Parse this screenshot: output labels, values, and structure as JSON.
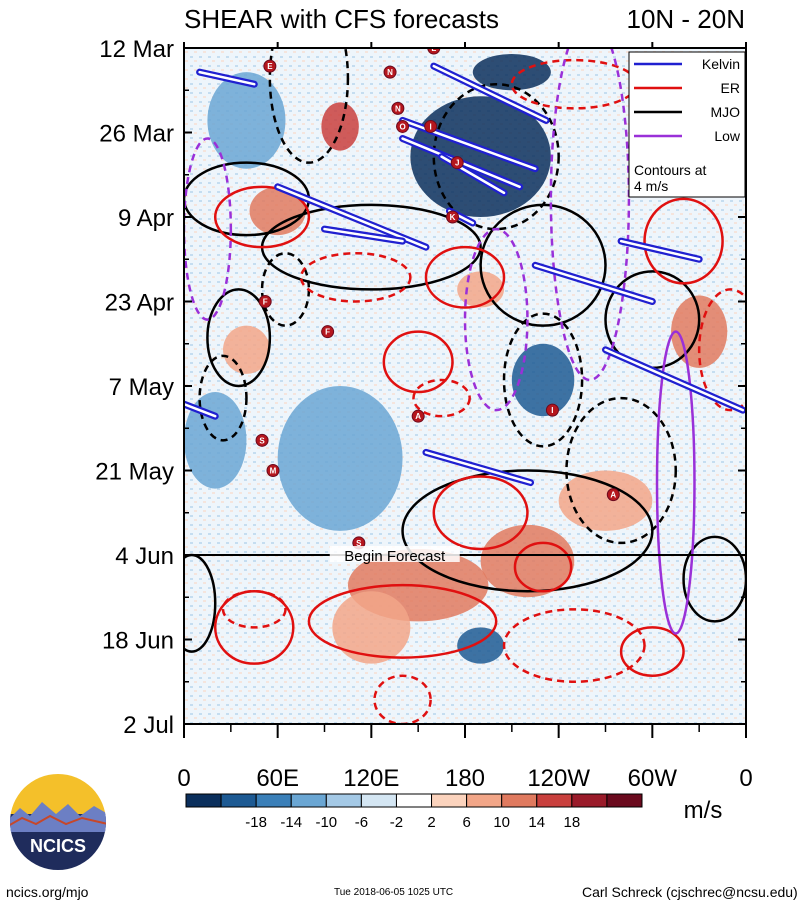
{
  "chart_data": {
    "type": "heatmap",
    "title_left": "SHEAR with CFS forecasts",
    "title_right": "10N - 20N",
    "x_ticks": [
      "0",
      "60E",
      "120E",
      "180",
      "120W",
      "60W",
      "0"
    ],
    "x_tick_values": [
      0,
      60,
      120,
      180,
      240,
      300,
      360
    ],
    "xlim": [
      0,
      360
    ],
    "y_ticks": [
      "12 Mar",
      "26 Mar",
      "9 Apr",
      "23 Apr",
      "7 May",
      "21 May",
      "4 Jun",
      "18 Jun",
      "2 Jul"
    ],
    "y_tick_days": [
      0,
      14,
      28,
      42,
      56,
      70,
      84,
      98,
      112
    ],
    "ylim_days": [
      0,
      112
    ],
    "begin_forecast_label": "Begin Forecast",
    "begin_forecast_day": 84,
    "colorbar": {
      "unit_label": "m/s",
      "tick_labels": [
        "-18",
        "-14",
        "-10",
        "-6",
        "-2",
        "2",
        "6",
        "10",
        "14",
        "18"
      ],
      "colors": [
        "#0b2f5c",
        "#1d5a93",
        "#3a7fb8",
        "#6aa6d3",
        "#a4c9e6",
        "#d4e6f3",
        "#ffffff",
        "#fbd3bd",
        "#f2a688",
        "#e07a5f",
        "#c9403d",
        "#9a1b2a",
        "#6b0a1e"
      ]
    },
    "legend": {
      "items": [
        {
          "label": "Kelvin",
          "color": "#2020d0"
        },
        {
          "label": "ER",
          "color": "#e01010"
        },
        {
          "label": "MJO",
          "color": "#000000"
        },
        {
          "label": "Low",
          "color": "#9a30d8"
        }
      ],
      "note_line1": "Contours at",
      "note_line2": "4 m/s"
    },
    "kelvin_bands": [
      {
        "lon_start": 10,
        "day_start": 4,
        "lon_end": 45,
        "day_end": 6
      },
      {
        "lon_start": 160,
        "day_start": 3,
        "lon_end": 232,
        "day_end": 12
      },
      {
        "lon_start": 140,
        "day_start": 15,
        "lon_end": 215,
        "day_end": 23
      },
      {
        "lon_start": 140,
        "day_start": 12,
        "lon_end": 225,
        "day_end": 20
      },
      {
        "lon_start": 165,
        "day_start": 18,
        "lon_end": 205,
        "day_end": 24
      },
      {
        "lon_start": 60,
        "day_start": 23,
        "lon_end": 155,
        "day_end": 33
      },
      {
        "lon_start": 90,
        "day_start": 30,
        "lon_end": 140,
        "day_end": 32
      },
      {
        "lon_start": 170,
        "day_start": 27,
        "lon_end": 185,
        "day_end": 29
      },
      {
        "lon_start": 280,
        "day_start": 32,
        "lon_end": 330,
        "day_end": 35
      },
      {
        "lon_start": 225,
        "day_start": 36,
        "lon_end": 300,
        "day_end": 42
      },
      {
        "lon_start": 270,
        "day_start": 50,
        "lon_end": 358,
        "day_end": 60
      },
      {
        "lon_start": 0,
        "day_start": 59,
        "lon_end": 20,
        "day_end": 61
      },
      {
        "lon_start": 155,
        "day_start": 67,
        "lon_end": 222,
        "day_end": 72
      }
    ],
    "mjo_contours": [
      {
        "lon": 40,
        "day": 25,
        "rx": 40,
        "ry": 6,
        "dashed": false
      },
      {
        "lon": 120,
        "day": 33,
        "rx": 70,
        "ry": 7,
        "dashed": false
      },
      {
        "lon": 230,
        "day": 36,
        "rx": 40,
        "ry": 10,
        "dashed": false
      },
      {
        "lon": 300,
        "day": 45,
        "rx": 30,
        "ry": 8,
        "dashed": false
      },
      {
        "lon": 35,
        "day": 48,
        "rx": 20,
        "ry": 8,
        "dashed": false
      },
      {
        "lon": 220,
        "day": 80,
        "rx": 80,
        "ry": 10,
        "dashed": false
      },
      {
        "lon": 340,
        "day": 88,
        "rx": 20,
        "ry": 7,
        "dashed": false
      },
      {
        "lon": 5,
        "day": 92,
        "rx": 15,
        "ry": 8,
        "dashed": false
      },
      {
        "lon": 80,
        "day": 5,
        "rx": 25,
        "ry": 14,
        "dashed": true
      },
      {
        "lon": 200,
        "day": 18,
        "rx": 40,
        "ry": 12,
        "dashed": true
      },
      {
        "lon": 65,
        "day": 40,
        "rx": 15,
        "ry": 6,
        "dashed": true
      },
      {
        "lon": 230,
        "day": 55,
        "rx": 25,
        "ry": 11,
        "dashed": true
      },
      {
        "lon": 25,
        "day": 58,
        "rx": 15,
        "ry": 7,
        "dashed": true
      },
      {
        "lon": 280,
        "day": 70,
        "rx": 35,
        "ry": 12,
        "dashed": true
      }
    ],
    "er_contours": [
      {
        "lon": 50,
        "day": 28,
        "rx": 30,
        "ry": 5,
        "dashed": false
      },
      {
        "lon": 180,
        "day": 38,
        "rx": 25,
        "ry": 5,
        "dashed": false
      },
      {
        "lon": 320,
        "day": 32,
        "rx": 25,
        "ry": 7,
        "dashed": false
      },
      {
        "lon": 150,
        "day": 52,
        "rx": 22,
        "ry": 5,
        "dashed": false
      },
      {
        "lon": 190,
        "day": 77,
        "rx": 30,
        "ry": 6,
        "dashed": false
      },
      {
        "lon": 140,
        "day": 95,
        "rx": 60,
        "ry": 6,
        "dashed": false
      },
      {
        "lon": 230,
        "day": 86,
        "rx": 18,
        "ry": 4,
        "dashed": false
      },
      {
        "lon": 300,
        "day": 100,
        "rx": 20,
        "ry": 4,
        "dashed": false
      },
      {
        "lon": 45,
        "day": 96,
        "rx": 25,
        "ry": 6,
        "dashed": false
      },
      {
        "lon": 110,
        "day": 38,
        "rx": 35,
        "ry": 4,
        "dashed": true
      },
      {
        "lon": 165,
        "day": 58,
        "rx": 18,
        "ry": 3,
        "dashed": true
      },
      {
        "lon": 45,
        "day": 93,
        "rx": 20,
        "ry": 3,
        "dashed": true
      },
      {
        "lon": 140,
        "day": 108,
        "rx": 18,
        "ry": 4,
        "dashed": true
      },
      {
        "lon": 250,
        "day": 99,
        "rx": 45,
        "ry": 6,
        "dashed": true
      },
      {
        "lon": 350,
        "day": 50,
        "rx": 20,
        "ry": 10,
        "dashed": true
      },
      {
        "lon": 250,
        "day": 6,
        "rx": 40,
        "ry": 4,
        "dashed": true
      }
    ],
    "low_contours": [
      {
        "lon": 15,
        "day": 30,
        "rx": 15,
        "ry": 15,
        "dashed": true
      },
      {
        "lon": 200,
        "day": 45,
        "rx": 20,
        "ry": 15,
        "dashed": true
      },
      {
        "lon": 260,
        "day": 25,
        "rx": 25,
        "ry": 30,
        "dashed": true
      },
      {
        "lon": 315,
        "day": 72,
        "rx": 12,
        "ry": 25,
        "dashed": false
      }
    ],
    "shear_cells": [
      {
        "lon": 100,
        "day": 13,
        "rx": 12,
        "ry": 4,
        "value": 16
      },
      {
        "lon": 60,
        "day": 27,
        "rx": 18,
        "ry": 4,
        "value": 12
      },
      {
        "lon": 190,
        "day": 40,
        "rx": 15,
        "ry": 3,
        "value": 10
      },
      {
        "lon": 150,
        "day": 89,
        "rx": 45,
        "ry": 6,
        "value": 12
      },
      {
        "lon": 220,
        "day": 85,
        "rx": 30,
        "ry": 6,
        "value": 14
      },
      {
        "lon": 330,
        "day": 47,
        "rx": 18,
        "ry": 6,
        "value": 14
      },
      {
        "lon": 40,
        "day": 50,
        "rx": 15,
        "ry": 4,
        "value": 10
      },
      {
        "lon": 270,
        "day": 75,
        "rx": 30,
        "ry": 5,
        "value": 8
      },
      {
        "lon": 120,
        "day": 96,
        "rx": 25,
        "ry": 6,
        "value": 8
      },
      {
        "lon": 190,
        "day": 18,
        "rx": 45,
        "ry": 10,
        "value": -18
      },
      {
        "lon": 210,
        "day": 4,
        "rx": 25,
        "ry": 3,
        "value": -18
      },
      {
        "lon": 230,
        "day": 55,
        "rx": 20,
        "ry": 6,
        "value": -14
      },
      {
        "lon": 190,
        "day": 99,
        "rx": 15,
        "ry": 3,
        "value": -14
      },
      {
        "lon": 100,
        "day": 68,
        "rx": 40,
        "ry": 12,
        "value": -6
      },
      {
        "lon": 40,
        "day": 12,
        "rx": 25,
        "ry": 8,
        "value": -6
      },
      {
        "lon": 20,
        "day": 65,
        "rx": 20,
        "ry": 8,
        "value": -6
      }
    ],
    "storm_markers": [
      {
        "letter": "E",
        "lon": 55,
        "day": 3
      },
      {
        "letter": "N",
        "lon": 132,
        "day": 4
      },
      {
        "letter": "L",
        "lon": 160,
        "day": 0
      },
      {
        "letter": "N",
        "lon": 137,
        "day": 10
      },
      {
        "letter": "O",
        "lon": 140,
        "day": 13
      },
      {
        "letter": "I",
        "lon": 158,
        "day": 13
      },
      {
        "letter": "J",
        "lon": 175,
        "day": 19
      },
      {
        "letter": "K",
        "lon": 172,
        "day": 28
      },
      {
        "letter": "F",
        "lon": 52,
        "day": 42
      },
      {
        "letter": "F",
        "lon": 92,
        "day": 47
      },
      {
        "letter": "A",
        "lon": 150,
        "day": 61
      },
      {
        "letter": "S",
        "lon": 50,
        "day": 65
      },
      {
        "letter": "M",
        "lon": 57,
        "day": 70
      },
      {
        "letter": "S",
        "lon": 112,
        "day": 82
      },
      {
        "letter": "I",
        "lon": 236,
        "day": 60
      },
      {
        "letter": "A",
        "lon": 275,
        "day": 74
      }
    ]
  },
  "footer": {
    "left": "ncics.org/mjo",
    "timestamp": "Tue 2018-06-05 1025 UTC",
    "author": "Carl Schreck (cjschrec@ncsu.edu)"
  },
  "logo": {
    "text": "NCICS"
  }
}
